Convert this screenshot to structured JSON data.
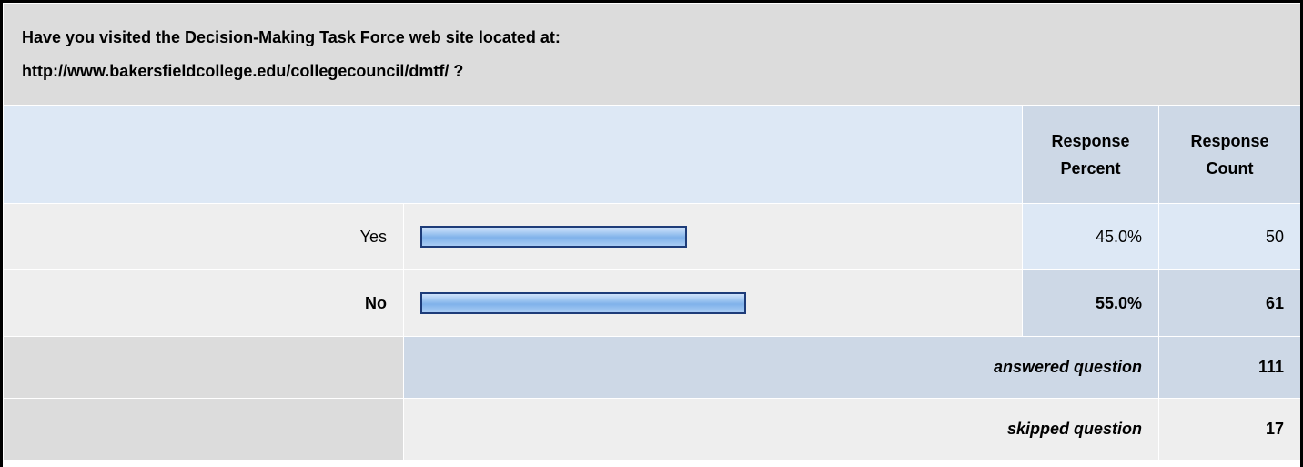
{
  "question": [
    "Have you visited the Decision-Making Task Force web site located at:",
    "http://www.bakersfieldcollege.edu/collegecouncil/dmtf/ ?"
  ],
  "headers": [
    "Response Percent",
    "Response Count"
  ],
  "rows": [
    {
      "label": "Yes",
      "percent": 45.0,
      "percent_label": "45.0%",
      "count": 50
    },
    {
      "label": "No",
      "percent": 55.0,
      "percent_label": "55.0%",
      "count": 61
    }
  ],
  "answered": {
    "label": "answered question",
    "count": 111
  },
  "skipped": {
    "label": "skipped question",
    "count": 17
  }
}
